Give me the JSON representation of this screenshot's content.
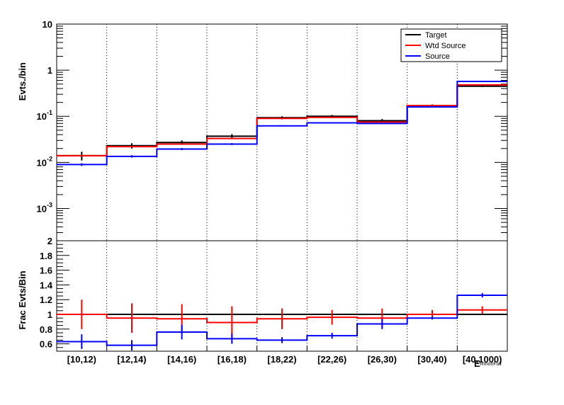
{
  "chart_data": [
    {
      "type": "line",
      "panel": "top",
      "ylabel": "Evts./bin",
      "yscale": "log",
      "ylim": [
        0.0002,
        10
      ],
      "y_ticks": [
        {
          "value": 0.001,
          "label": "10",
          "exp": "-3"
        },
        {
          "value": 0.01,
          "label": "10",
          "exp": "-2"
        },
        {
          "value": 0.1,
          "label": "10",
          "exp": "-1"
        },
        {
          "value": 1,
          "label": "1",
          "exp": ""
        },
        {
          "value": 10,
          "label": "10",
          "exp": ""
        }
      ],
      "categories": [
        "[10,12)",
        "[12,14)",
        "[14,16)",
        "[16,18)",
        "[18,22)",
        "[22,26)",
        "[26,30)",
        "[30,40)",
        "[40,1000)"
      ],
      "legend_position": "top-right",
      "series": [
        {
          "name": "Target",
          "color": "#000000",
          "values": [
            0.014,
            0.023,
            0.027,
            0.037,
            0.093,
            0.1,
            0.08,
            0.17,
            0.45
          ],
          "errors": [
            0.003,
            0.003,
            0.003,
            0.004,
            0.007,
            0.007,
            0.007,
            0.01,
            0.02
          ]
        },
        {
          "name": "Wtd Source",
          "color": "#ff0000",
          "values": [
            0.014,
            0.022,
            0.025,
            0.033,
            0.09,
            0.095,
            0.075,
            0.17,
            0.48
          ],
          "errors": [
            0,
            0,
            0,
            0,
            0,
            0,
            0,
            0,
            0
          ]
        },
        {
          "name": "Source",
          "color": "#0000ff",
          "values": [
            0.009,
            0.0135,
            0.0195,
            0.025,
            0.062,
            0.072,
            0.07,
            0.16,
            0.57
          ],
          "errors": [
            0.0006,
            0.0008,
            0.001,
            0.0012,
            0.002,
            0.002,
            0.002,
            0.003,
            0.006
          ]
        }
      ]
    },
    {
      "type": "line",
      "panel": "bottom",
      "ylabel": "Frac Evts/Bin",
      "ylim": [
        0.5,
        2
      ],
      "y_ticks": [
        0.6,
        0.8,
        1,
        1.2,
        1.4,
        1.6,
        1.8,
        2
      ],
      "xlabel": "E",
      "xlabel_sub": "RmonFull",
      "categories": [
        "[10,12)",
        "[12,14)",
        "[14,16)",
        "[16,18)",
        "[18,22)",
        "[22,26)",
        "[26,30)",
        "[30,40)",
        "[40,1000)"
      ],
      "series": [
        {
          "name": "Target",
          "color": "#000000",
          "values": [
            1,
            1,
            1,
            1,
            1,
            1,
            1,
            1,
            1
          ],
          "errors": [
            0,
            0,
            0,
            0,
            0,
            0,
            0,
            0,
            0
          ]
        },
        {
          "name": "Wtd Source",
          "color": "#ff0000",
          "values": [
            1.0,
            0.95,
            0.94,
            0.89,
            0.94,
            0.96,
            0.95,
            1.0,
            1.06
          ],
          "errors": [
            0.2,
            0.2,
            0.2,
            0.22,
            0.14,
            0.1,
            0.13,
            0.06,
            0.05
          ]
        },
        {
          "name": "Source",
          "color": "#0000ff",
          "values": [
            0.63,
            0.58,
            0.76,
            0.67,
            0.65,
            0.71,
            0.87,
            0.95,
            1.26
          ],
          "errors": [
            0.1,
            0.07,
            0.1,
            0.07,
            0.04,
            0.04,
            0.07,
            0.02,
            0.03
          ]
        }
      ]
    }
  ]
}
